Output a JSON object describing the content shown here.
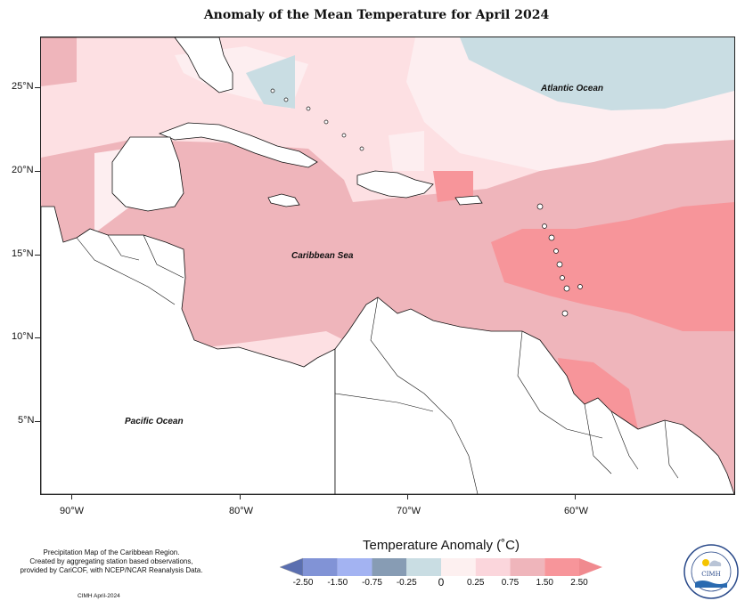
{
  "title": "Anomaly of the Mean Temperature for April 2024",
  "map": {
    "labels": {
      "atlantic": "Atlantic Ocean",
      "caribbean": "Caribbean Sea",
      "pacific": "Pacific Ocean"
    },
    "lat_ticks": [
      "25°N",
      "20°N",
      "15°N",
      "10°N",
      "5°N"
    ],
    "lon_ticks": [
      "90°W",
      "80°W",
      "70°W",
      "60°W"
    ]
  },
  "legend": {
    "title": "Temperature Anomaly (˚C)",
    "ticks": [
      "-2.50",
      "-1.50",
      "-0.75",
      "-0.25",
      "0",
      "0.25",
      "0.75",
      "1.50",
      "2.50"
    ],
    "colors": [
      "#5b6fb0",
      "#8193d6",
      "#a3b3f2",
      "#879cb4",
      "#c9dde3",
      "#fdf0f0",
      "#fbd6dc",
      "#efb5bb",
      "#f7959a",
      "#f08a8f"
    ]
  },
  "footnote": {
    "lines": [
      "Precipitation Map of the Caribbean Region.",
      "Created by aggregating station based observations,",
      "provided by CariCOF, with NCEP/NCAR Reanalysis Data."
    ],
    "date": "CIMH April-2024"
  },
  "logo": {
    "text": "CIMH"
  }
}
